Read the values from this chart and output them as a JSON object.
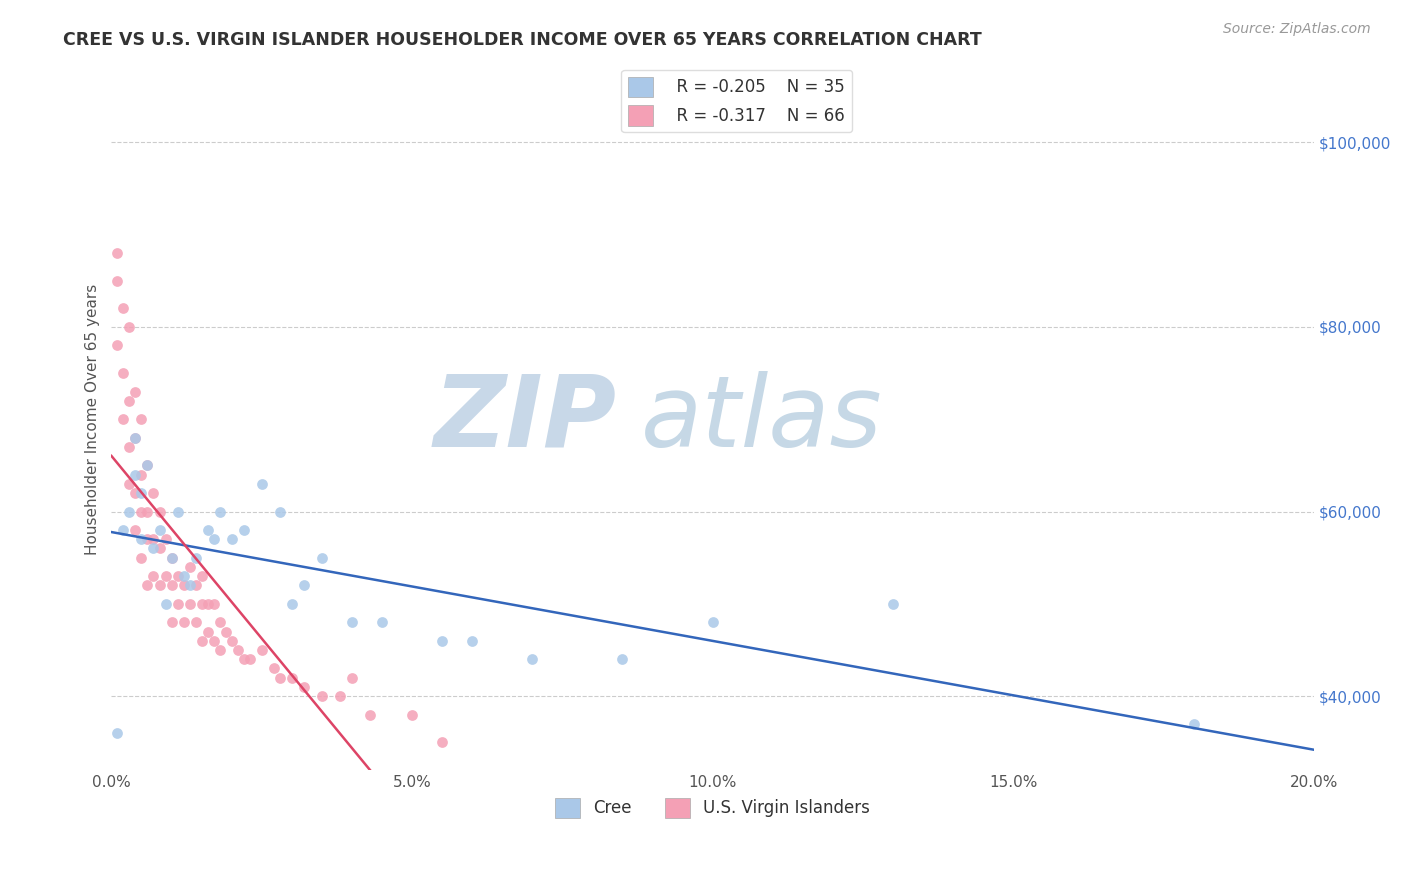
{
  "title": "CREE VS U.S. VIRGIN ISLANDER HOUSEHOLDER INCOME OVER 65 YEARS CORRELATION CHART",
  "source": "Source: ZipAtlas.com",
  "ylabel": "Householder Income Over 65 years",
  "xlim": [
    0.0,
    0.2
  ],
  "ylim": [
    32000,
    108000
  ],
  "yticks": [
    40000,
    60000,
    80000,
    100000
  ],
  "xticks": [
    0.0,
    0.05,
    0.1,
    0.15,
    0.2
  ],
  "xtick_labels": [
    "0.0%",
    "5.0%",
    "10.0%",
    "15.0%",
    "20.0%"
  ],
  "ytick_labels": [
    "$40,000",
    "$60,000",
    "$80,000",
    "$100,000"
  ],
  "cree_color": "#aac8e8",
  "vi_color": "#f4a0b5",
  "cree_line_color": "#3366bb",
  "vi_line_color": "#dd4466",
  "legend_R_cree": "R = -0.205",
  "legend_N_cree": "N = 35",
  "legend_R_vi": "R = -0.317",
  "legend_N_vi": "N = 66",
  "cree_x": [
    0.001,
    0.002,
    0.003,
    0.004,
    0.004,
    0.005,
    0.005,
    0.006,
    0.007,
    0.008,
    0.009,
    0.01,
    0.011,
    0.012,
    0.013,
    0.014,
    0.016,
    0.017,
    0.018,
    0.02,
    0.022,
    0.025,
    0.028,
    0.03,
    0.032,
    0.035,
    0.04,
    0.045,
    0.055,
    0.06,
    0.07,
    0.085,
    0.1,
    0.13,
    0.18
  ],
  "cree_y": [
    36000,
    58000,
    60000,
    64000,
    68000,
    57000,
    62000,
    65000,
    56000,
    58000,
    50000,
    55000,
    60000,
    53000,
    52000,
    55000,
    58000,
    57000,
    60000,
    57000,
    58000,
    63000,
    60000,
    50000,
    52000,
    55000,
    48000,
    48000,
    46000,
    46000,
    44000,
    44000,
    48000,
    50000,
    37000
  ],
  "vi_x": [
    0.001,
    0.001,
    0.001,
    0.002,
    0.002,
    0.002,
    0.003,
    0.003,
    0.003,
    0.003,
    0.004,
    0.004,
    0.004,
    0.004,
    0.005,
    0.005,
    0.005,
    0.005,
    0.006,
    0.006,
    0.006,
    0.006,
    0.007,
    0.007,
    0.007,
    0.008,
    0.008,
    0.008,
    0.009,
    0.009,
    0.01,
    0.01,
    0.01,
    0.011,
    0.011,
    0.012,
    0.012,
    0.013,
    0.013,
    0.014,
    0.014,
    0.015,
    0.015,
    0.015,
    0.016,
    0.016,
    0.017,
    0.017,
    0.018,
    0.018,
    0.019,
    0.02,
    0.021,
    0.022,
    0.023,
    0.025,
    0.027,
    0.028,
    0.03,
    0.032,
    0.035,
    0.038,
    0.04,
    0.043,
    0.05,
    0.055
  ],
  "vi_y": [
    88000,
    85000,
    78000,
    82000,
    75000,
    70000,
    80000,
    72000,
    67000,
    63000,
    73000,
    68000,
    62000,
    58000,
    70000,
    64000,
    60000,
    55000,
    65000,
    60000,
    57000,
    52000,
    62000,
    57000,
    53000,
    60000,
    56000,
    52000,
    57000,
    53000,
    55000,
    52000,
    48000,
    53000,
    50000,
    52000,
    48000,
    54000,
    50000,
    52000,
    48000,
    50000,
    46000,
    53000,
    50000,
    47000,
    50000,
    46000,
    48000,
    45000,
    47000,
    46000,
    45000,
    44000,
    44000,
    45000,
    43000,
    42000,
    42000,
    41000,
    40000,
    40000,
    42000,
    38000,
    38000,
    35000
  ]
}
